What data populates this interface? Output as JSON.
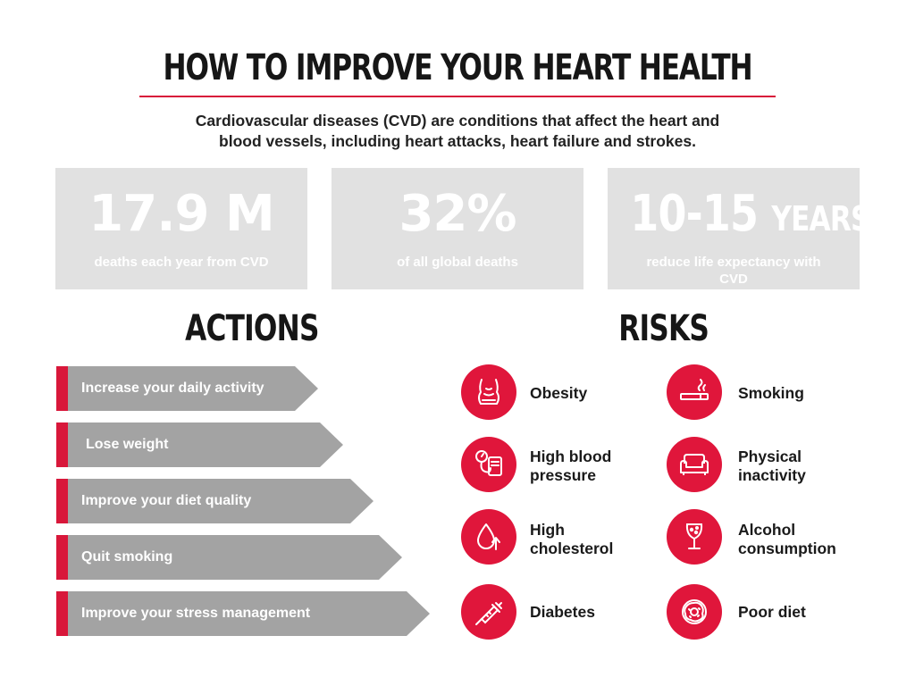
{
  "title": "HOW TO IMPROVE YOUR HEART HEALTH",
  "intro": {
    "line1": "Cardiovascular diseases (CVD) are conditions that affect the heart and",
    "line2": "blood vessels, including heart attacks, heart failure and strokes."
  },
  "stats": [
    {
      "value": "17.9 M",
      "label": "deaths each year from CVD"
    },
    {
      "value": "32%",
      "label": "of all global deaths"
    },
    {
      "value": "10-15",
      "unit": "YEARS",
      "label": "reduce life expectancy with CVD"
    }
  ],
  "actions": {
    "heading": "ACTIONS",
    "items": [
      "Increase your daily activity",
      "Lose weight",
      "Improve your diet quality",
      "Quit smoking",
      "Improve your stress management"
    ]
  },
  "risks": {
    "heading": "RISKS",
    "items": [
      {
        "line1": "Obesity",
        "line2": "",
        "icon": "obesity-icon"
      },
      {
        "line1": "Smoking",
        "line2": "",
        "icon": "cigarette-icon"
      },
      {
        "line1": "High blood",
        "line2": "pressure",
        "icon": "blood-pressure-icon"
      },
      {
        "line1": "Physical",
        "line2": "inactivity",
        "icon": "sofa-icon"
      },
      {
        "line1": "High",
        "line2": "cholesterol",
        "icon": "cholesterol-drop-icon"
      },
      {
        "line1": "Alcohol",
        "line2": "consumption",
        "icon": "wine-glass-icon"
      },
      {
        "line1": "Diabetes",
        "line2": "",
        "icon": "syringe-icon"
      },
      {
        "line1": "Poor diet",
        "line2": "",
        "icon": "donut-icon"
      }
    ]
  },
  "colors": {
    "accent": "#e0163b",
    "panel": "#e1e1e1",
    "arrow": "#a3a3a3"
  }
}
